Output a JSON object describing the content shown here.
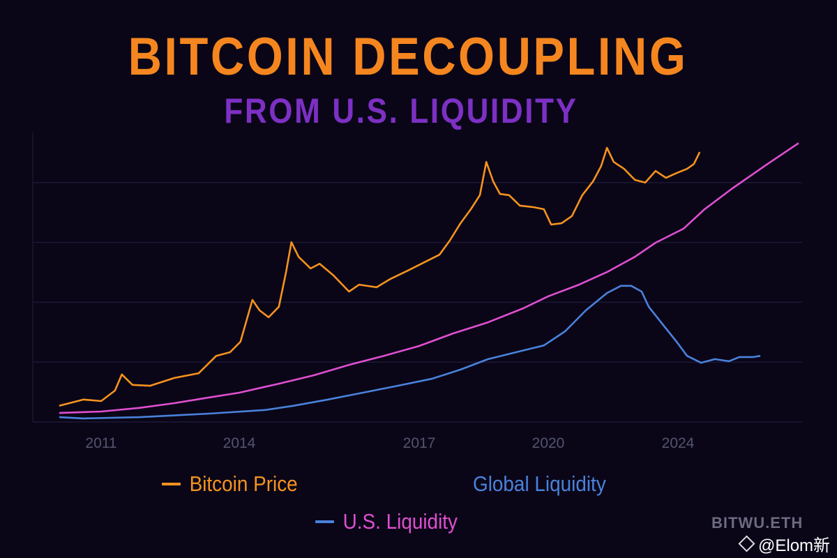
{
  "chart_data": {
    "type": "line",
    "title": "BITCOIN DECOUPLING",
    "subtitle": "FROM U.S. LIQUIDITY",
    "xlabel": "",
    "ylabel": "",
    "x_ticks": [
      "2011",
      "2014",
      "2017",
      "2020",
      "2024"
    ],
    "grid": "horizontal",
    "ylim": [
      0,
      100
    ],
    "series": [
      {
        "name": "Bitcoin Price",
        "color": "#f7931e",
        "x": [
          2010.09,
          2010.62,
          2011.0,
          2011.3,
          2011.45,
          2011.68,
          2012.06,
          2012.59,
          2013.12,
          2013.5,
          2013.8,
          2014.02,
          2014.22,
          2014.34,
          2014.49,
          2014.66,
          2014.78,
          2014.87,
          2014.99,
          2015.19,
          2015.34,
          2015.57,
          2015.83,
          2016.0,
          2016.29,
          2016.52,
          2016.81,
          2017.15,
          2017.47,
          2017.71,
          2017.96,
          2018.2,
          2018.41,
          2018.56,
          2018.72,
          2018.88,
          2019.09,
          2019.34,
          2019.66,
          2019.9,
          2020.09,
          2020.41,
          2020.73,
          2021.05,
          2021.38,
          2021.63,
          2021.81,
          2022.02,
          2022.34,
          2022.67,
          2022.99,
          2023.31,
          2023.63,
          2023.96,
          2024.28,
          2024.49,
          2024.67
        ],
        "y": [
          5.4,
          7.5,
          7.0,
          10.5,
          15.9,
          12.4,
          12.1,
          14.7,
          16.3,
          22.1,
          23.3,
          26.8,
          40.8,
          37.3,
          35.0,
          38.5,
          50.1,
          60.1,
          55.2,
          51.3,
          52.9,
          49.0,
          43.6,
          45.9,
          45.0,
          47.8,
          50.6,
          53.6,
          55.9,
          60.6,
          66.4,
          71.1,
          75.8,
          86.9,
          80.4,
          76.2,
          75.8,
          72.3,
          71.8,
          71.1,
          66.0,
          66.4,
          68.8,
          75.8,
          80.4,
          85.5,
          91.6,
          86.9,
          84.6,
          80.9,
          80.0,
          83.9,
          81.6,
          83.2,
          84.6,
          86.2,
          90.2
        ]
      },
      {
        "color": "#e04fd0",
        "x": [
          2010.09,
          2011.0,
          2011.83,
          2012.59,
          2013.35,
          2014.0,
          2014.66,
          2015.24,
          2015.83,
          2016.41,
          2017.0,
          2017.79,
          2018.6,
          2019.42,
          2020.0,
          2020.95,
          2021.81,
          2022.67,
          2023.31,
          2024.17,
          2024.82,
          2025.68,
          2026.76,
          2027.72
        ],
        "y": [
          3.0,
          3.5,
          4.7,
          6.3,
          8.2,
          9.8,
          12.8,
          15.6,
          19.1,
          22.1,
          25.4,
          29.6,
          33.3,
          38.0,
          42.0,
          45.9,
          50.1,
          55.2,
          59.9,
          64.6,
          71.1,
          78.1,
          86.2,
          93.2
        ]
      },
      {
        "color": "#4a82dc",
        "x": [
          2010.09,
          2010.62,
          2011.83,
          2013.35,
          2014.43,
          2014.9,
          2015.48,
          2016.06,
          2016.64,
          2017.31,
          2017.96,
          2018.6,
          2019.25,
          2019.9,
          2020.52,
          2021.16,
          2021.81,
          2022.24,
          2022.56,
          2022.88,
          2023.1,
          2023.53,
          2023.96,
          2024.28,
          2024.71,
          2025.14,
          2025.57,
          2025.89,
          2026.32,
          2026.54
        ],
        "y": [
          1.6,
          1.2,
          1.6,
          2.8,
          4.0,
          5.4,
          7.5,
          9.8,
          12.1,
          14.5,
          17.5,
          21.0,
          23.3,
          25.6,
          30.3,
          37.3,
          43.1,
          45.5,
          45.5,
          43.6,
          38.5,
          32.6,
          26.8,
          22.1,
          19.8,
          21.0,
          20.3,
          21.7,
          21.7,
          22.1
        ]
      }
    ],
    "legend": [
      {
        "label": "Bitcoin Price",
        "text_color": "#f7931e",
        "marker_color": "#f7931e"
      },
      {
        "label": "Global Liquidity",
        "text_color": "#4a82dc",
        "marker_color": null
      },
      {
        "label": "U.S. Liquidity",
        "text_color": "#e04fd0",
        "marker_color": "#4a82dc"
      }
    ]
  },
  "watermark": {
    "line1": "BITWU.ETH",
    "line2": "@Elom新"
  }
}
